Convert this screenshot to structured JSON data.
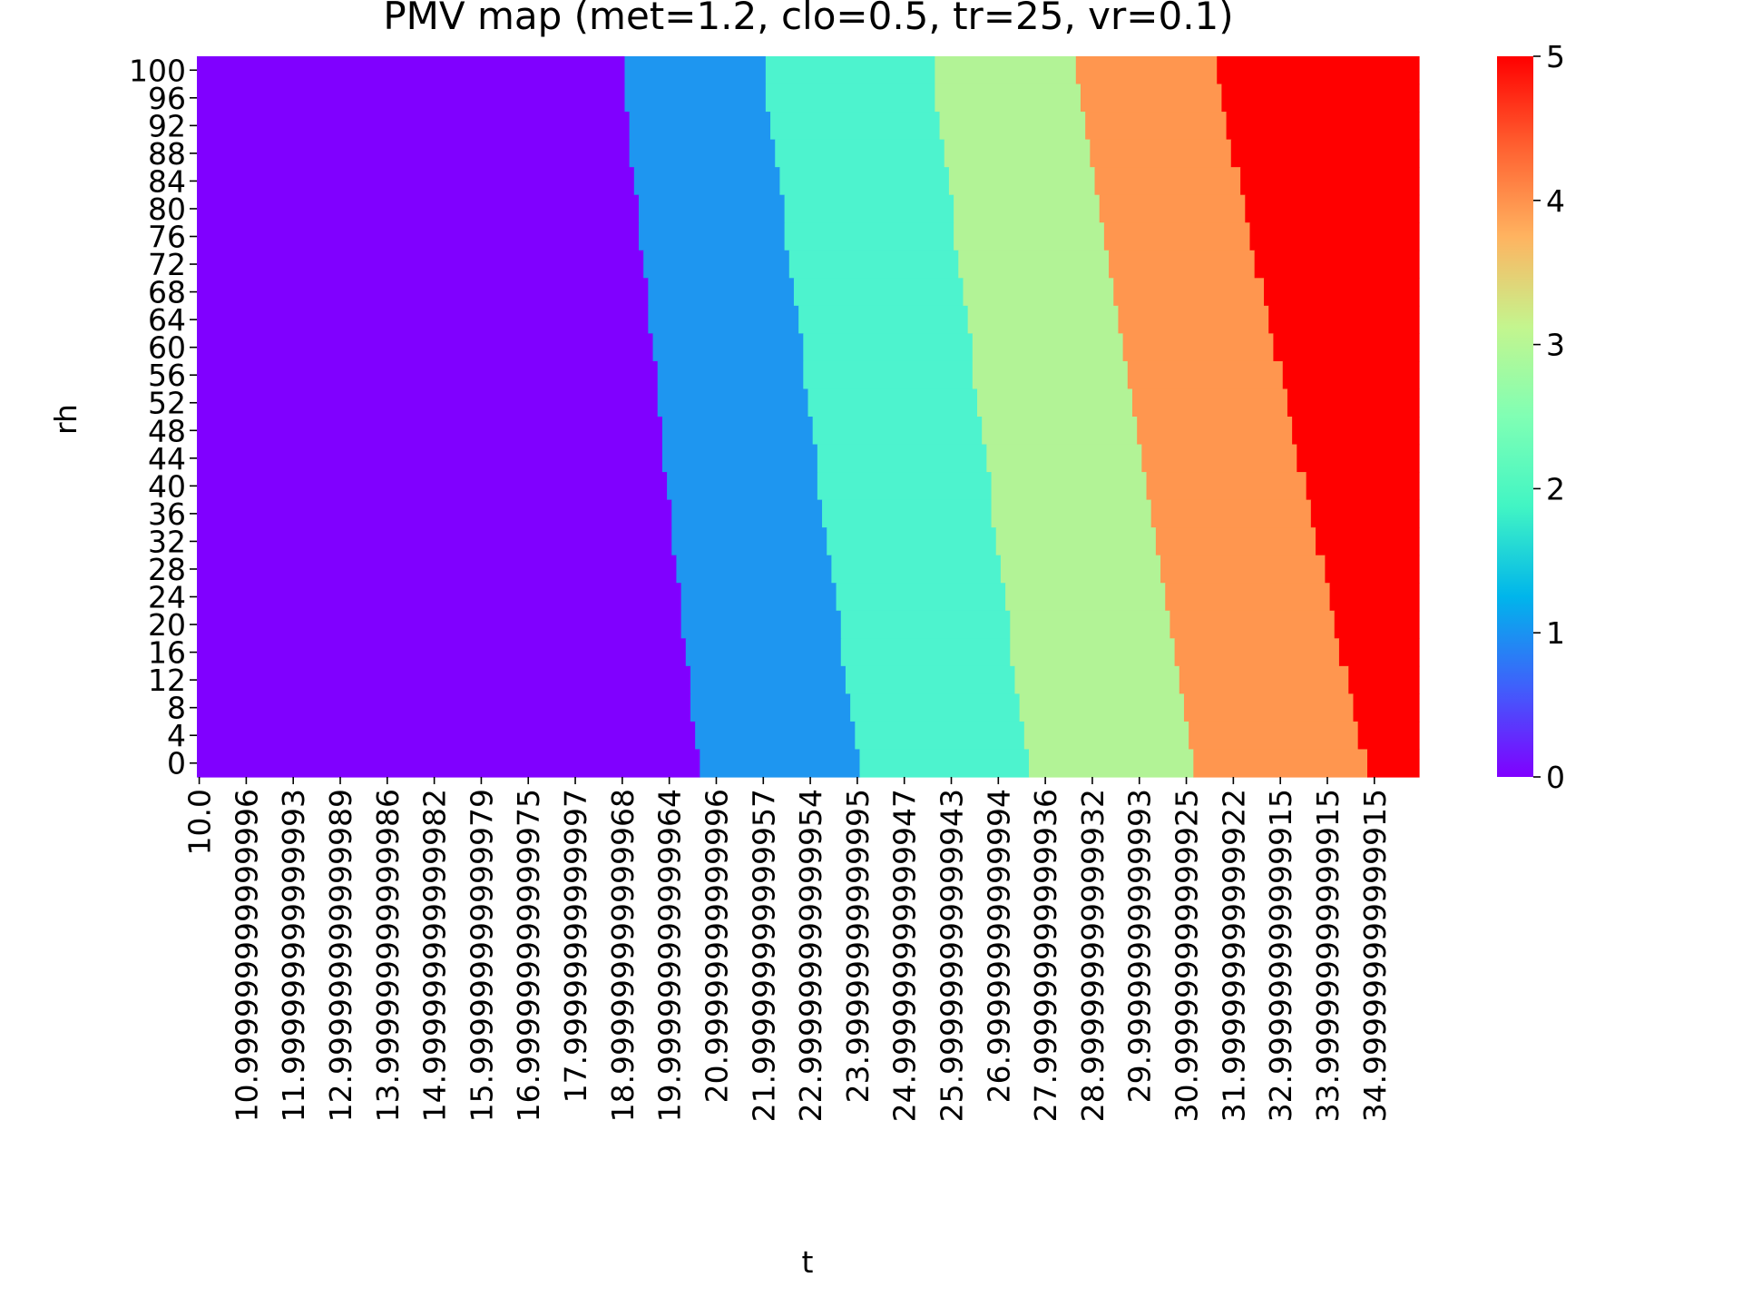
{
  "chart_data": {
    "type": "heatmap",
    "title": "PMV map (met=1.2, clo=0.5, tr=25, vr=0.1)",
    "xlabel": "t",
    "ylabel": "rh",
    "x_range": [
      10.0,
      35.9
    ],
    "x_step": 0.1,
    "y_range": [
      0,
      100
    ],
    "y_step": 4,
    "x_tick_labels": [
      "10.0",
      "10.999999999999996",
      "11.999999999999993",
      "12.999999999999989",
      "13.999999999999986",
      "14.999999999999982",
      "15.999999999999979",
      "16.999999999999975",
      "17.99999999999997",
      "18.999999999999968",
      "19.999999999999964",
      "20.99999999999996",
      "21.999999999999957",
      "22.999999999999954",
      "23.99999999999995",
      "24.999999999999947",
      "25.999999999999943",
      "26.99999999999994",
      "27.999999999999936",
      "28.999999999999932",
      "29.99999999999993",
      "30.999999999999925",
      "31.999999999999922",
      "32.999999999999915",
      "33.999999999999915",
      "34.999999999999915"
    ],
    "y_tick_labels": [
      "100",
      "96",
      "92",
      "88",
      "84",
      "80",
      "76",
      "72",
      "68",
      "64",
      "60",
      "56",
      "52",
      "48",
      "44",
      "40",
      "36",
      "32",
      "28",
      "24",
      "20",
      "16",
      "12",
      "8",
      "4",
      "0"
    ],
    "value_levels": [
      0,
      1,
      2,
      3,
      4,
      5
    ],
    "band_boundaries_t": [
      {
        "between": [
          0,
          1
        ],
        "t_at_rh_0": 20.6,
        "t_at_rh_100": 19.0
      },
      {
        "between": [
          1,
          2
        ],
        "t_at_rh_0": 24.0,
        "t_at_rh_100": 22.0
      },
      {
        "between": [
          2,
          3
        ],
        "t_at_rh_0": 27.6,
        "t_at_rh_100": 25.6
      },
      {
        "between": [
          3,
          4
        ],
        "t_at_rh_0": 31.1,
        "t_at_rh_100": 28.6
      },
      {
        "between": [
          4,
          5
        ],
        "t_at_rh_0": 34.8,
        "t_at_rh_100": 31.6
      }
    ],
    "colorbar": {
      "range": [
        0,
        5
      ],
      "ticks": [
        "0",
        "1",
        "2",
        "3",
        "4",
        "5"
      ],
      "colormap": "rainbow",
      "stops": [
        "#8000ff",
        "#3f60fb",
        "#00b5eb",
        "#41f5c4",
        "#80ffb4",
        "#c4f58e",
        "#ffb360",
        "#ff6030",
        "#ff0000"
      ]
    },
    "colors": {
      "level_0": "#8000ff",
      "level_1": "#1e96f0",
      "level_2": "#4df3ce",
      "level_3": "#b2f396",
      "level_4": "#ff964f",
      "level_5": "#ff0000"
    }
  }
}
